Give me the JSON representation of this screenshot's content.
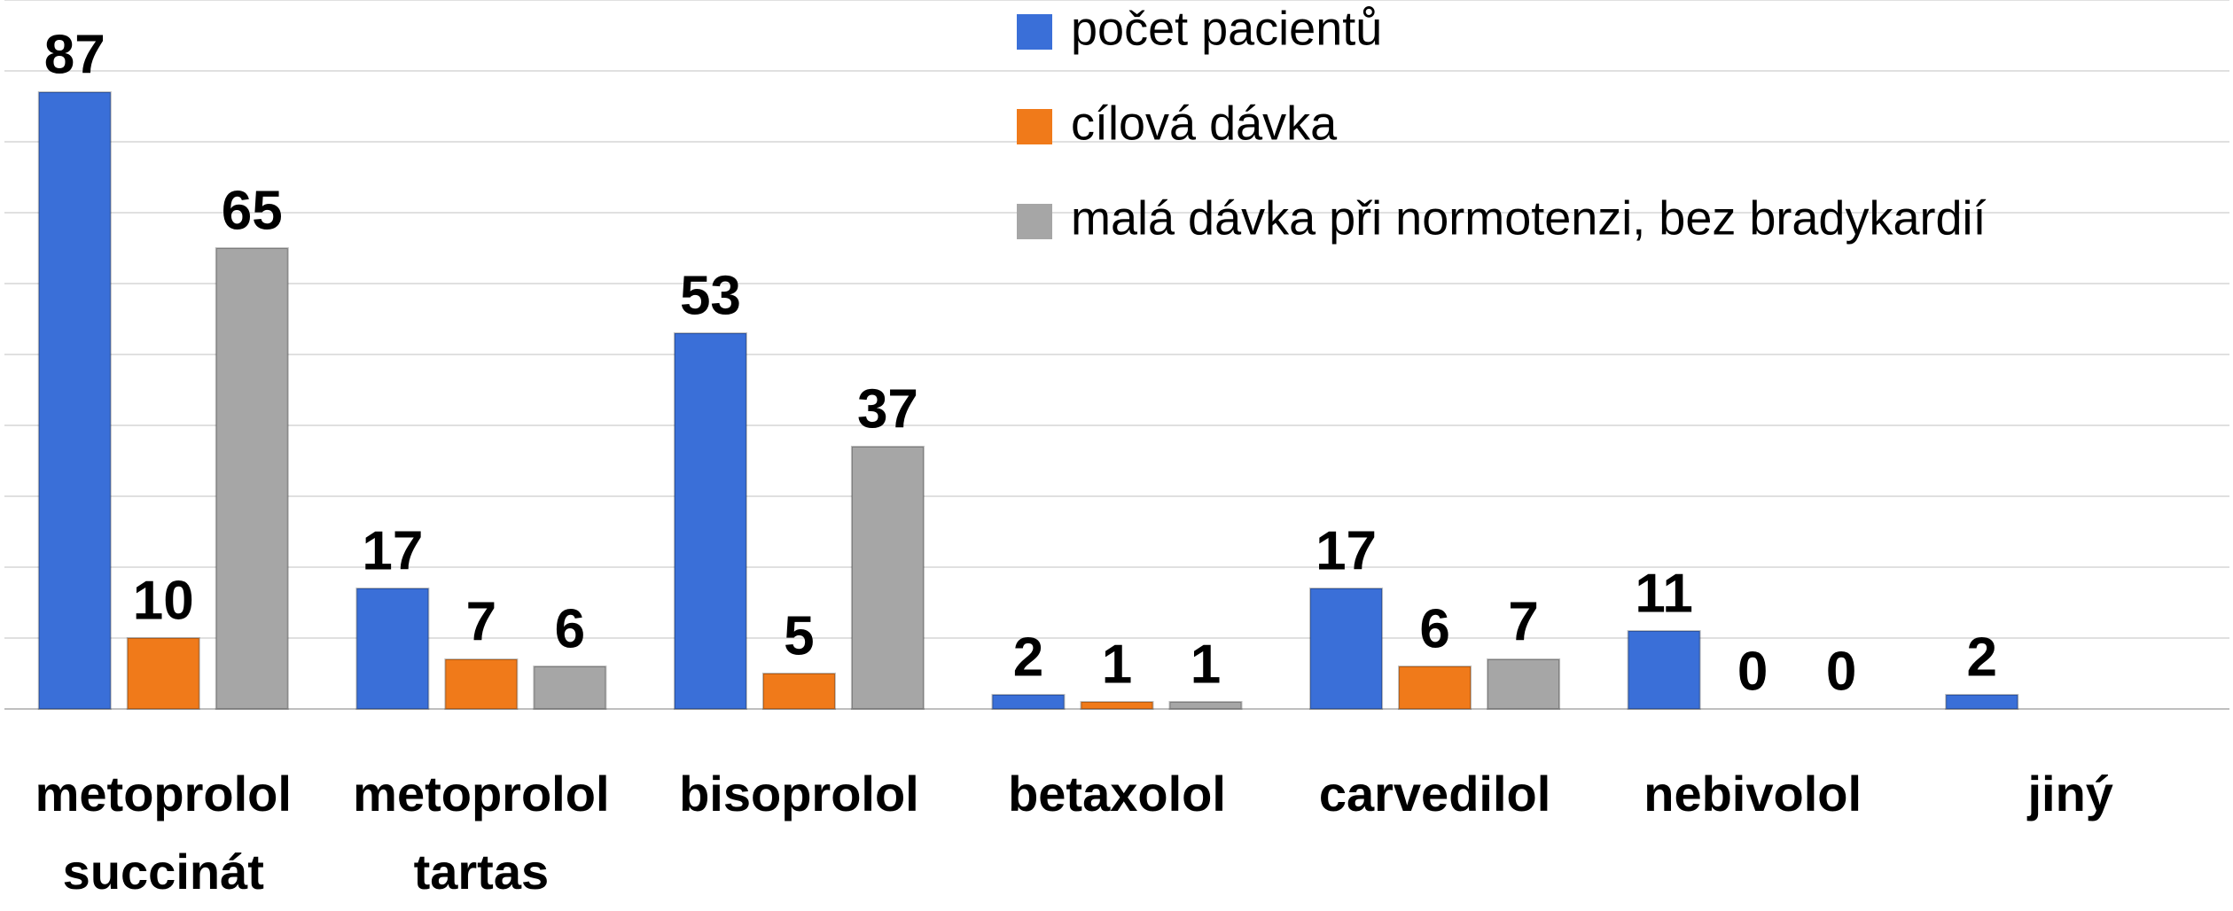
{
  "chart_data": {
    "type": "bar",
    "categories": [
      "metoprolol succinát",
      "metoprolol tartas",
      "bisoprolol",
      "betaxolol",
      "carvedilol",
      "nebivolol",
      "jiný"
    ],
    "series": [
      {
        "name": "počet pacientů",
        "color": "#3a6fd8",
        "values": [
          87,
          17,
          53,
          2,
          17,
          11,
          2
        ]
      },
      {
        "name": "cílová dávka",
        "color": "#f07a1a",
        "values": [
          10,
          7,
          5,
          1,
          6,
          0,
          null
        ]
      },
      {
        "name": "malá dávka při normotenzi, bez bradykardií",
        "color": "#a6a6a6",
        "values": [
          65,
          6,
          37,
          1,
          7,
          0,
          null
        ]
      }
    ],
    "ylim": [
      0,
      100
    ],
    "yticks": [
      0,
      10,
      20,
      30,
      40,
      50,
      60,
      70,
      80,
      90,
      100
    ],
    "grid": true,
    "legend": "top-right"
  }
}
